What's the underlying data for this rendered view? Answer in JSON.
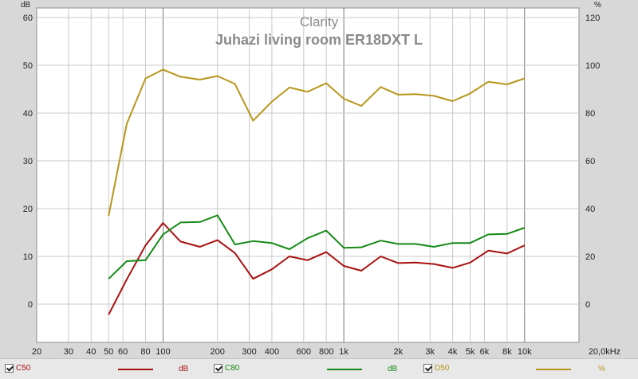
{
  "chart_data": {
    "type": "line",
    "title": "Clarity",
    "subtitle": "Juhazi living room ER18DXT L",
    "x_scale": "log",
    "xlim": [
      20,
      20000
    ],
    "x_ticks": [
      20,
      30,
      40,
      50,
      60,
      80,
      100,
      200,
      300,
      400,
      600,
      800,
      1000,
      2000,
      3000,
      4000,
      5000,
      6000,
      8000,
      10000,
      20000
    ],
    "x_tick_labels": [
      "20",
      "30",
      "40",
      "50",
      "60",
      "80",
      "100",
      "200",
      "300",
      "400",
      "600",
      "800",
      "1k",
      "2k",
      "3k",
      "4k",
      "5k",
      "6k",
      "8k",
      "10k",
      "20,0kHz"
    ],
    "y_left": {
      "label": "dB",
      "range": [
        -8,
        62
      ],
      "ticks": [
        0,
        10,
        20,
        30,
        40,
        50,
        60
      ]
    },
    "y_right": {
      "label": "%",
      "range": [
        -16,
        124
      ],
      "ticks": [
        0,
        20,
        40,
        60,
        80,
        100,
        120
      ]
    },
    "grid": true,
    "x": [
      50,
      63,
      80,
      100,
      125,
      160,
      200,
      250,
      315,
      400,
      500,
      630,
      800,
      1000,
      1250,
      1600,
      2000,
      2500,
      3150,
      4000,
      5000,
      6300,
      8000,
      10000
    ],
    "series": [
      {
        "name": "C50",
        "axis": "left",
        "color": "#a81010",
        "values": [
          -2.2,
          5.2,
          12.3,
          17.0,
          13.1,
          12.0,
          13.4,
          10.7,
          5.3,
          7.3,
          10.0,
          9.2,
          10.9,
          8.0,
          7.0,
          10.0,
          8.6,
          8.7,
          8.4,
          7.6,
          8.7,
          11.2,
          10.6,
          12.3
        ]
      },
      {
        "name": "C80",
        "axis": "left",
        "color": "#168a16",
        "values": [
          5.3,
          9.0,
          9.2,
          14.6,
          17.1,
          17.2,
          18.6,
          12.5,
          13.2,
          12.8,
          11.5,
          13.8,
          15.4,
          11.8,
          11.9,
          13.3,
          12.6,
          12.6,
          12.0,
          12.8,
          12.8,
          14.6,
          14.7,
          16.0
        ]
      },
      {
        "name": "D50",
        "axis": "right",
        "color": "#b8961c",
        "values": [
          37,
          75.5,
          94.5,
          98.2,
          95.2,
          94,
          95.5,
          92.2,
          76.8,
          84.8,
          90.7,
          88.9,
          92.5,
          86,
          83,
          90.9,
          87.7,
          87.9,
          87.2,
          85,
          88.2,
          93.1,
          92.0,
          94.5
        ]
      }
    ]
  },
  "legend": [
    {
      "name": "C50",
      "unit": "dB",
      "color": "#a81010"
    },
    {
      "name": "C80",
      "unit": "dB",
      "color": "#168a16"
    },
    {
      "name": "D50",
      "unit": "%",
      "color": "#b8961c"
    }
  ]
}
